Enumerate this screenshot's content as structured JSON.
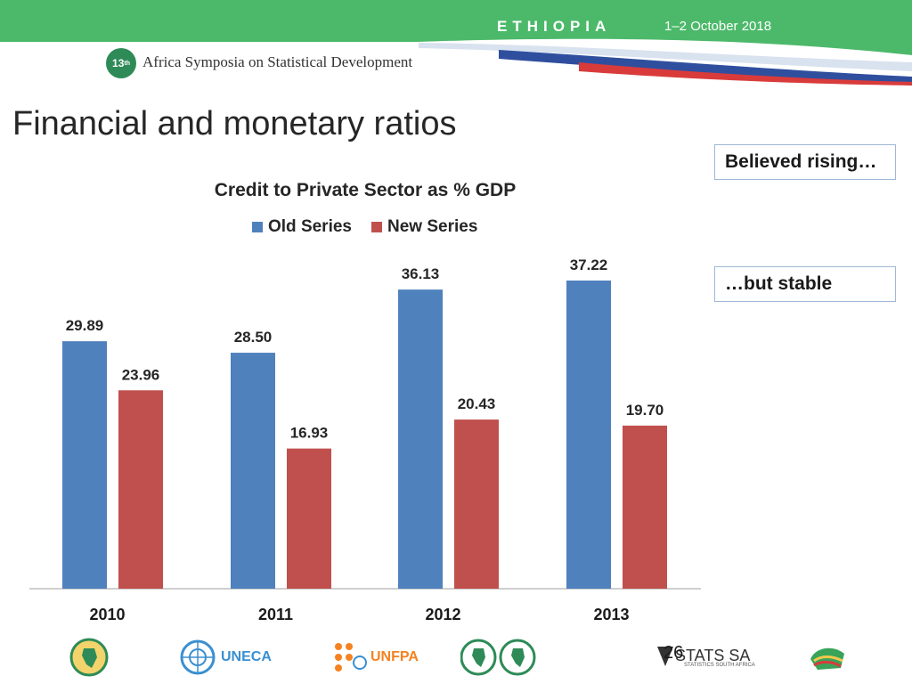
{
  "header": {
    "country": "ETHIOPIA",
    "date": "1–2 October 2018",
    "symposium_badge": "13",
    "symposium_badge_sup": "th",
    "symposium_name": "Africa Symposia on Statistical Development"
  },
  "slide": {
    "title": "Financial and monetary ratios",
    "page_number": "26"
  },
  "callouts": [
    "Believed rising…",
    "…but stable"
  ],
  "footer": {
    "uneca_label": "UNECA",
    "unfpa_label": "UNFPA",
    "stats_label": "STATS SA",
    "stats_sub": "STATISTICS SOUTH AFRICA"
  },
  "colors": {
    "header_green": "#4cb96a",
    "old_series": "#4f81bd",
    "new_series": "#c0504d",
    "callout_border": "#9fb8d6"
  },
  "chart_data": {
    "type": "bar",
    "title": "Credit to Private Sector as % GDP",
    "categories": [
      "2010",
      "2011",
      "2012",
      "2013"
    ],
    "series": [
      {
        "name": "Old Series",
        "values": [
          29.89,
          28.5,
          36.13,
          37.22
        ]
      },
      {
        "name": "New Series",
        "values": [
          23.96,
          16.93,
          20.43,
          19.7
        ]
      }
    ],
    "value_labels": [
      [
        "29.89",
        "28.50",
        "36.13",
        "37.22"
      ],
      [
        "23.96",
        "16.93",
        "20.43",
        "19.70"
      ]
    ],
    "legend_position": "top",
    "grid": false,
    "ylim": [
      0,
      40
    ]
  }
}
